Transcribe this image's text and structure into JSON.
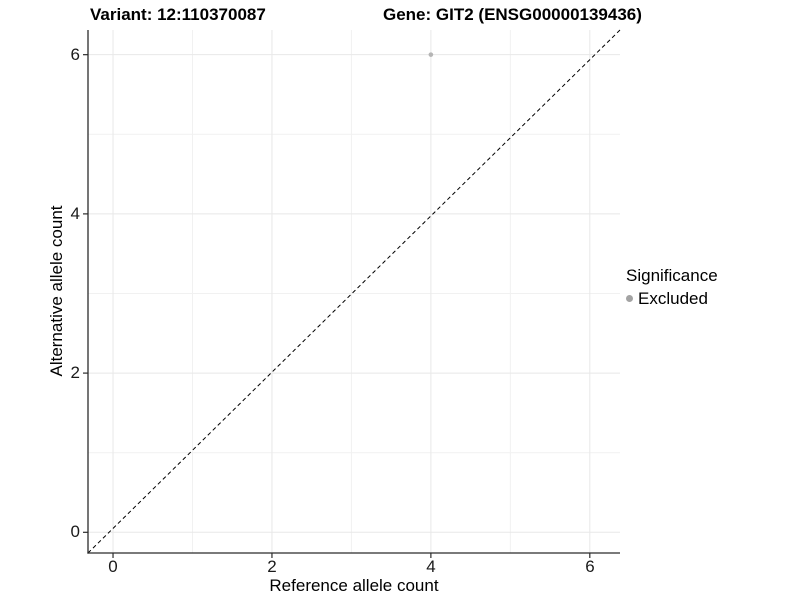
{
  "titles": {
    "left": "Variant: 12:110370087",
    "right": "Gene: GIT2 (ENSG00000139436)"
  },
  "axes": {
    "x": {
      "label": "Reference allele count",
      "ticks": [
        "0",
        "2",
        "4",
        "6"
      ]
    },
    "y": {
      "label": "Alternative allele count",
      "ticks": [
        "6",
        "4",
        "2",
        "0"
      ]
    }
  },
  "legend": {
    "title": "Significance",
    "items": [
      {
        "label": "Excluded",
        "color": "#a3a3a3"
      }
    ]
  },
  "colors": {
    "background": "#ffffff",
    "grid_major": "#e8e8e8",
    "grid_minor": "#f1f1f1",
    "axis_line": "#2b2b2b",
    "tick_mark": "#2b2b2b",
    "dashed_line": "#000000",
    "point": "#b5b5b5",
    "text": "#000000"
  },
  "chart_data": {
    "type": "scatter",
    "title": "Variant: 12:110370087   |   Gene: GIT2 (ENSG00000139436)",
    "xlabel": "Reference allele count",
    "ylabel": "Alternative allele count",
    "xlim": [
      -0.315,
      6.38
    ],
    "ylim": [
      -0.26,
      6.31
    ],
    "x_major_ticks": [
      0,
      2,
      4,
      6
    ],
    "x_minor_ticks": [
      1,
      3,
      5
    ],
    "y_major_ticks": [
      0,
      2,
      4,
      6
    ],
    "y_minor_ticks": [
      1,
      3,
      5
    ],
    "grid": true,
    "legend_position": "right",
    "identity_line": {
      "slope": 1,
      "intercept": 0,
      "style": "dashed",
      "color": "#000000"
    },
    "series": [
      {
        "name": "Excluded",
        "color": "#b5b5b5",
        "points": [
          {
            "x": 4,
            "y": 6
          }
        ]
      }
    ]
  }
}
